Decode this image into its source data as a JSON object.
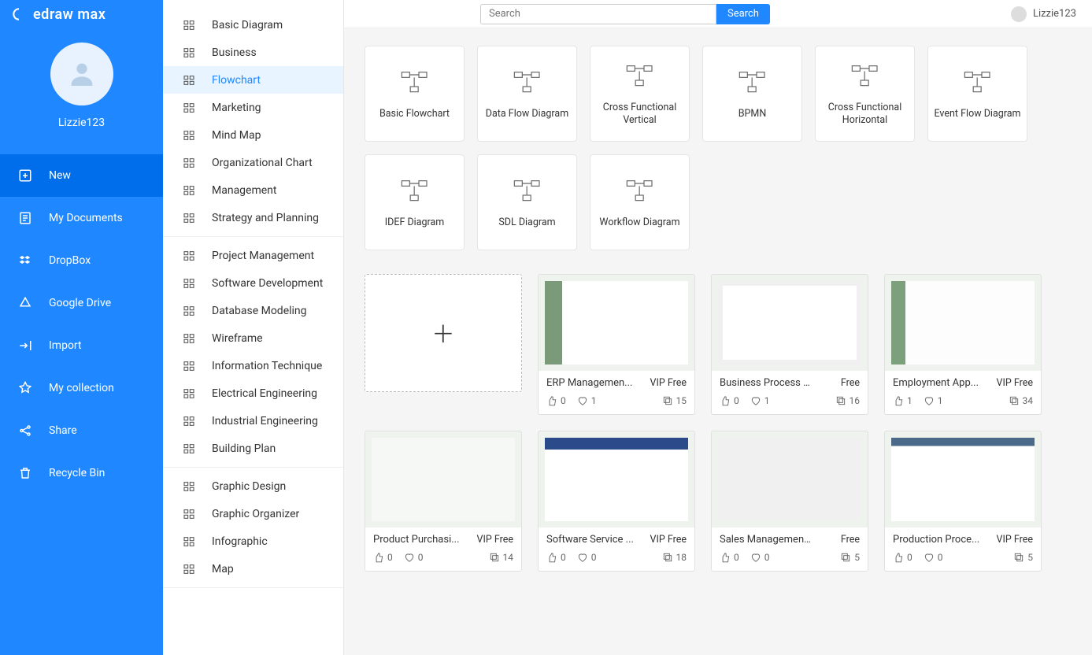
{
  "app": {
    "name": "edraw max"
  },
  "user": {
    "name": "Lizzie123"
  },
  "topbar": {
    "search_placeholder": "Search",
    "search_button": "Search"
  },
  "nav_left": [
    {
      "key": "new",
      "label": "New",
      "active": true
    },
    {
      "key": "my-documents",
      "label": "My Documents"
    },
    {
      "key": "dropbox",
      "label": "DropBox"
    },
    {
      "key": "google-drive",
      "label": "Google Drive"
    },
    {
      "key": "import",
      "label": "Import"
    },
    {
      "key": "my-collection",
      "label": "My collection"
    },
    {
      "key": "share",
      "label": "Share"
    },
    {
      "key": "recycle-bin",
      "label": "Recycle Bin"
    }
  ],
  "categories": {
    "group1": [
      {
        "key": "basic-diagram",
        "label": "Basic Diagram"
      },
      {
        "key": "business",
        "label": "Business"
      },
      {
        "key": "flowchart",
        "label": "Flowchart",
        "selected": true
      },
      {
        "key": "marketing",
        "label": "Marketing"
      },
      {
        "key": "mind-map",
        "label": "Mind Map"
      },
      {
        "key": "organizational-chart",
        "label": "Organizational Chart"
      },
      {
        "key": "management",
        "label": "Management"
      },
      {
        "key": "strategy-planning",
        "label": "Strategy and Planning"
      }
    ],
    "group2": [
      {
        "key": "project-management",
        "label": "Project Management"
      },
      {
        "key": "software-development",
        "label": "Software Development"
      },
      {
        "key": "database-modeling",
        "label": "Database Modeling"
      },
      {
        "key": "wireframe",
        "label": "Wireframe"
      },
      {
        "key": "information-technique",
        "label": "Information Technique"
      },
      {
        "key": "electrical-engineering",
        "label": "Electrical Engineering"
      },
      {
        "key": "industrial-engineering",
        "label": "Industrial Engineering"
      },
      {
        "key": "building-plan",
        "label": "Building Plan"
      }
    ],
    "group3": [
      {
        "key": "graphic-design",
        "label": "Graphic Design"
      },
      {
        "key": "graphic-organizer",
        "label": "Graphic Organizer"
      },
      {
        "key": "infographic",
        "label": "Infographic"
      },
      {
        "key": "map",
        "label": "Map"
      }
    ]
  },
  "diagram_types": [
    {
      "key": "basic-flowchart",
      "label": "Basic Flowchart"
    },
    {
      "key": "data-flow-diagram",
      "label": "Data Flow Diagram"
    },
    {
      "key": "cross-functional-vertical",
      "label": "Cross Functional Vertical"
    },
    {
      "key": "bpmn",
      "label": "BPMN"
    },
    {
      "key": "cross-functional-horizontal",
      "label": "Cross Functional Horizontal"
    },
    {
      "key": "event-flow-diagram",
      "label": "Event Flow Diagram"
    },
    {
      "key": "idef-diagram",
      "label": "IDEF Diagram"
    },
    {
      "key": "sdl-diagram",
      "label": "SDL Diagram"
    },
    {
      "key": "workflow-diagram",
      "label": "Workflow Diagram"
    }
  ],
  "templates": [
    {
      "key": "erp",
      "title": "ERP Managemen...",
      "badge": "VIP Free",
      "likes": 0,
      "favs": 1,
      "copies": 15,
      "thumb": "a"
    },
    {
      "key": "bpmn",
      "title": "Business Process Mo...",
      "badge": "Free",
      "likes": 0,
      "favs": 1,
      "copies": 16,
      "thumb": "b"
    },
    {
      "key": "employment",
      "title": "Employment App...",
      "badge": "VIP Free",
      "likes": 1,
      "favs": 1,
      "copies": 34,
      "thumb": "c"
    },
    {
      "key": "product",
      "title": "Product Purchasi...",
      "badge": "VIP Free",
      "likes": 0,
      "favs": 0,
      "copies": 14,
      "thumb": "d"
    },
    {
      "key": "software",
      "title": "Software Service ...",
      "badge": "VIP Free",
      "likes": 0,
      "favs": 0,
      "copies": 18,
      "thumb": "e"
    },
    {
      "key": "sales",
      "title": "Sales Management C...",
      "badge": "Free",
      "likes": 0,
      "favs": 0,
      "copies": 5,
      "thumb": "f"
    },
    {
      "key": "production",
      "title": "Production Proce...",
      "badge": "VIP Free",
      "likes": 0,
      "favs": 0,
      "copies": 5,
      "thumb": "g"
    }
  ],
  "colors": {
    "primary": "#1f87ff",
    "primary_dark": "#006dea",
    "border": "#e5e5e5",
    "bg_main": "#f5f5f5",
    "text": "#333333",
    "text_muted": "#666666"
  }
}
